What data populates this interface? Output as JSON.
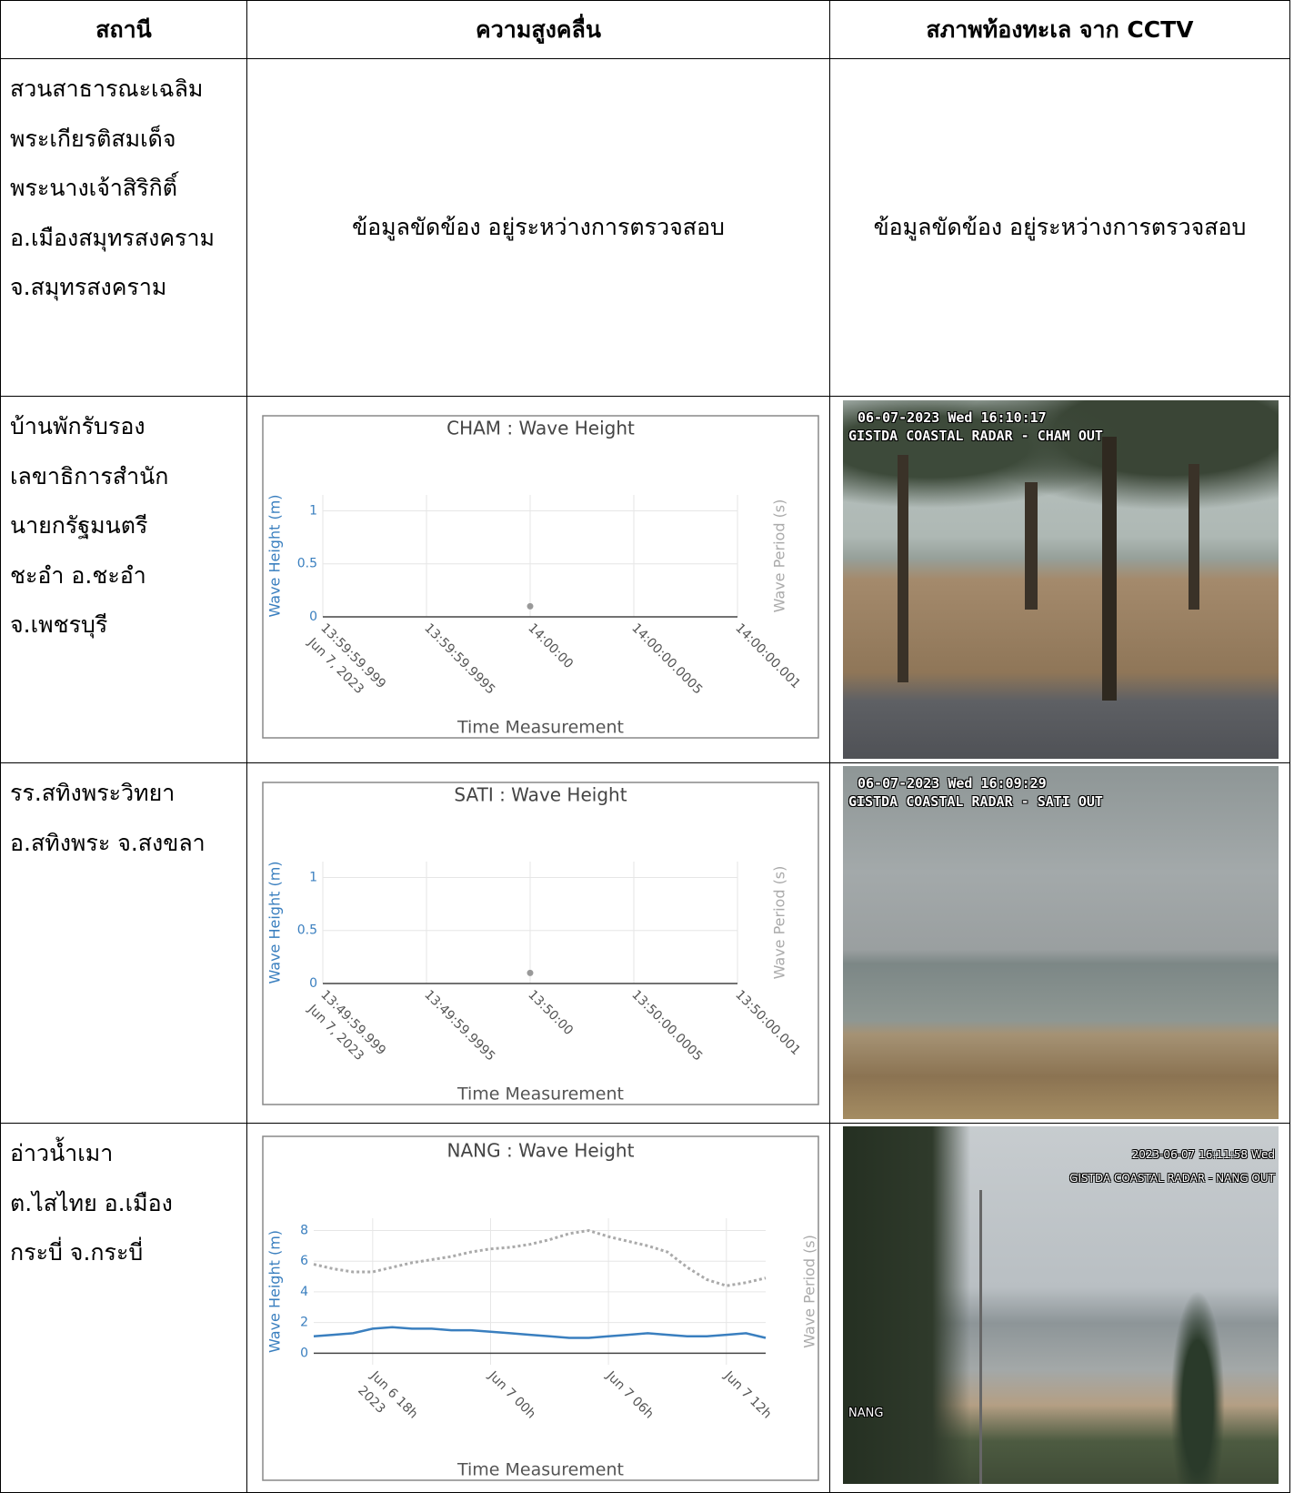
{
  "table": {
    "header": [
      "สถานี",
      "ความสูงคลื่น",
      "สภาพท้องทะเล จาก CCTV"
    ],
    "rows": [
      {
        "station": [
          "สวนสาธารณะเฉลิม",
          "พระเกียรติสมเด็จ",
          "พระนางเจ้าสิริกิติ์",
          "อ.เมืองสมุทรสงคราม",
          "จ.สมุทรสงคราม"
        ],
        "wave_status": "ข้อมูลขัดข้อง อยู่ระหว่างการตรวจสอบ",
        "cctv_status": "ข้อมูลขัดข้อง อยู่ระหว่างการตรวจสอบ"
      },
      {
        "station": [
          "บ้านพักรับรอง",
          "เลขาธิการสำนัก",
          "นายกรัฐมนตรี",
          "ชะอำ อ.ชะอำ",
          "จ.เพชรบุรี"
        ],
        "wave_chart": {
          "type": "scatter",
          "title": "CHAM : Wave Height",
          "x_label": "Time Measurement",
          "y_label": "Wave Height (m)",
          "y2_label": "Wave Period (s)",
          "x": [
            "13:59:59.999",
            "13:59:59.9995",
            "14:00:00",
            "14:00:00.0005",
            "14:00:00.001"
          ],
          "x_tick_date": "Jun 7, 2023",
          "ylim": [
            0,
            1.15
          ],
          "yticks": [
            0,
            0.5,
            1
          ],
          "grid": true,
          "series": [
            {
              "color": "#999999",
              "values": [
                null,
                null,
                0.1,
                null,
                null
              ]
            }
          ]
        },
        "cctv": {
          "timestamp": "06-07-2023 Wed 16:10:17",
          "caption": "GISTDA COASTAL RADAR - CHAM OUT"
        }
      },
      {
        "station": [
          "รร.สทิงพระวิทยา",
          "อ.สทิงพระ จ.สงขลา"
        ],
        "wave_chart": {
          "type": "scatter",
          "title": "SATI : Wave Height",
          "x_label": "Time Measurement",
          "y_label": "Wave Height (m)",
          "y2_label": "Wave Period (s)",
          "x": [
            "13:49:59.999",
            "13:49:59.9995",
            "13:50:00",
            "13:50:00.0005",
            "13:50:00.001"
          ],
          "x_tick_date": "Jun 7, 2023",
          "ylim": [
            0,
            1.15
          ],
          "yticks": [
            0,
            0.5,
            1
          ],
          "grid": true,
          "series": [
            {
              "color": "#999999",
              "values": [
                null,
                null,
                0.1,
                null,
                null
              ]
            }
          ]
        },
        "cctv": {
          "timestamp": "06-07-2023 Wed 16:09:29",
          "caption": "GISTDA COASTAL RADAR - SATI OUT"
        }
      },
      {
        "station": [
          "อ่าวน้ำเมา",
          "ต.ไสไทย  อ.เมือง",
          "กระบี่ จ.กระบี่"
        ],
        "wave_chart": {
          "type": "line",
          "title": "NANG : Wave Height",
          "x_label": "Time Measurement",
          "y_label": "Wave Height (m)",
          "y2_label": "Wave Period (s)",
          "x": [
            "Jun 6 15h",
            "Jun 6 16h",
            "Jun 6 17h",
            "Jun 6 18h",
            "Jun 6 19h",
            "Jun 6 20h",
            "Jun 6 21h",
            "Jun 6 22h",
            "Jun 6 23h",
            "Jun 7 00h",
            "Jun 7 01h",
            "Jun 7 02h",
            "Jun 7 03h",
            "Jun 7 04h",
            "Jun 7 05h",
            "Jun 7 06h",
            "Jun 7 07h",
            "Jun 7 08h",
            "Jun 7 09h",
            "Jun 7 10h",
            "Jun 7 11h",
            "Jun 7 12h",
            "Jun 7 13h",
            "Jun 7 14h"
          ],
          "xticks": [
            "Jun 6 18h",
            "Jun 7 00h",
            "Jun 7 06h",
            "Jun 7 12h"
          ],
          "x_tick_date": "2023",
          "ylim": [
            -0.75,
            8.8
          ],
          "yticks": [
            0,
            2,
            4,
            6,
            8
          ],
          "grid": true,
          "series": [
            {
              "color": "#3a7fbf",
              "values": [
                1.1,
                1.2,
                1.3,
                1.6,
                1.7,
                1.6,
                1.6,
                1.5,
                1.5,
                1.4,
                1.3,
                1.2,
                1.1,
                1.0,
                1.0,
                1.1,
                1.2,
                1.3,
                1.2,
                1.1,
                1.1,
                1.2,
                1.3,
                1.0
              ]
            },
            {
              "color": "#aaaaaa",
              "style": "dotted",
              "values": [
                5.8,
                5.5,
                5.3,
                5.3,
                5.6,
                5.9,
                6.1,
                6.3,
                6.6,
                6.8,
                6.9,
                7.1,
                7.4,
                7.8,
                8.0,
                7.6,
                7.3,
                7.0,
                6.6,
                5.6,
                4.8,
                4.4,
                4.6,
                4.9
              ]
            }
          ]
        },
        "cctv": {
          "timestamp": "2023-06-07 16:11:58 Wed",
          "caption": "GISTDA COASTAL RADAR - NANG OUT",
          "station_tag": "NANG"
        }
      }
    ]
  }
}
